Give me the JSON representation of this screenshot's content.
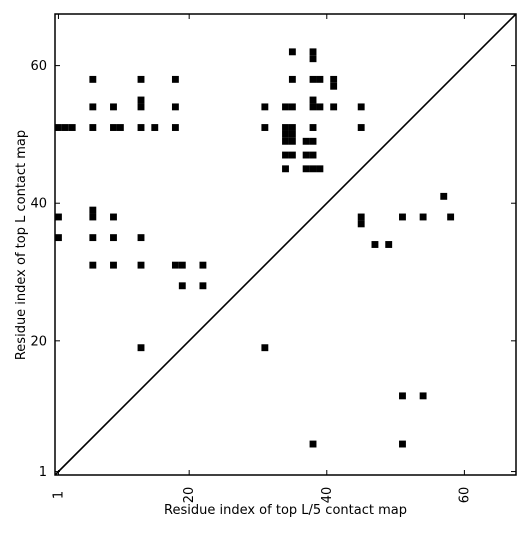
{
  "chart_data": {
    "type": "heatmap",
    "title": "",
    "xlabel": "Residue index of top L/5 contact map",
    "ylabel": "Residue index of top L contact map",
    "xlim": [
      0.5,
      67.5
    ],
    "ylim": [
      0.5,
      67.5
    ],
    "xticks": [
      1,
      20,
      40,
      60
    ],
    "yticks": [
      1,
      20,
      40,
      60
    ],
    "diagonal": true,
    "grid": false,
    "legend": "none",
    "colors": {
      "cell": "#000000",
      "frame": "#000000",
      "background": "#ffffff"
    },
    "upper_cells": [
      [
        1,
        51
      ],
      [
        2,
        51
      ],
      [
        3,
        51
      ],
      [
        6,
        51
      ],
      [
        9,
        51
      ],
      [
        10,
        51
      ],
      [
        13,
        51
      ],
      [
        15,
        51
      ],
      [
        18,
        51
      ],
      [
        31,
        51
      ],
      [
        34,
        51
      ],
      [
        35,
        51
      ],
      [
        38,
        51
      ],
      [
        45,
        51
      ],
      [
        6,
        54
      ],
      [
        9,
        54
      ],
      [
        13,
        54
      ],
      [
        18,
        54
      ],
      [
        31,
        54
      ],
      [
        34,
        54
      ],
      [
        35,
        54
      ],
      [
        38,
        54
      ],
      [
        39,
        54
      ],
      [
        41,
        54
      ],
      [
        45,
        54
      ],
      [
        13,
        55
      ],
      [
        38,
        55
      ],
      [
        6,
        58
      ],
      [
        13,
        58
      ],
      [
        18,
        58
      ],
      [
        35,
        58
      ],
      [
        38,
        58
      ],
      [
        39,
        58
      ],
      [
        41,
        58
      ],
      [
        41,
        57
      ],
      [
        38,
        61
      ],
      [
        38,
        62
      ],
      [
        35,
        62
      ],
      [
        34,
        50
      ],
      [
        35,
        50
      ],
      [
        35,
        49
      ],
      [
        34,
        49
      ],
      [
        37,
        49
      ],
      [
        38,
        49
      ],
      [
        34,
        47
      ],
      [
        35,
        47
      ],
      [
        37,
        47
      ],
      [
        38,
        47
      ],
      [
        34,
        45
      ],
      [
        37,
        45
      ],
      [
        38,
        45
      ],
      [
        39,
        45
      ],
      [
        1,
        38
      ],
      [
        6,
        38
      ],
      [
        6,
        39
      ],
      [
        9,
        38
      ],
      [
        1,
        35
      ],
      [
        6,
        35
      ],
      [
        9,
        35
      ],
      [
        13,
        35
      ],
      [
        6,
        31
      ],
      [
        9,
        31
      ],
      [
        13,
        31
      ],
      [
        18,
        31
      ],
      [
        19,
        31
      ],
      [
        22,
        31
      ],
      [
        19,
        28
      ],
      [
        22,
        28
      ],
      [
        13,
        19
      ],
      [
        31,
        19
      ]
    ],
    "lower_cells": [
      [
        45,
        37
      ],
      [
        45,
        38
      ],
      [
        47,
        34
      ],
      [
        49,
        34
      ],
      [
        51,
        38
      ],
      [
        54,
        38
      ],
      [
        57,
        41
      ],
      [
        58,
        38
      ],
      [
        51,
        12
      ],
      [
        54,
        12
      ],
      [
        38,
        5
      ],
      [
        51,
        5
      ]
    ]
  }
}
